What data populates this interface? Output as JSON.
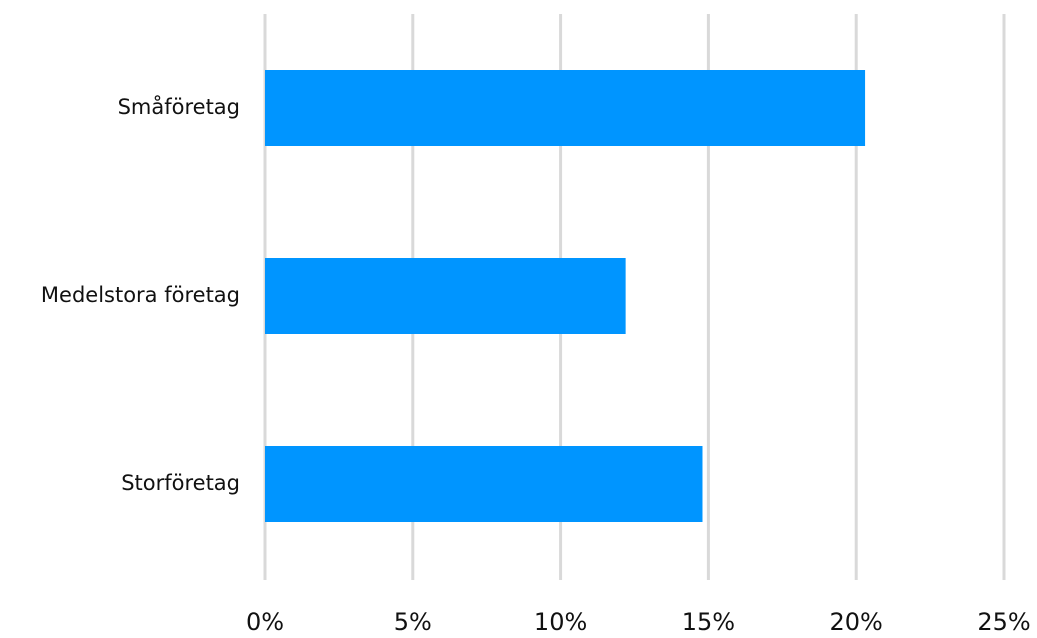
{
  "chart_data": {
    "type": "bar",
    "orientation": "horizontal",
    "categories": [
      "Småföretag",
      "Medelstora företag",
      "Storföretag"
    ],
    "values": [
      20.3,
      12.2,
      14.8
    ],
    "value_unit": "%",
    "xlim": [
      0,
      25
    ],
    "x_ticks": [
      0,
      5,
      10,
      15,
      20,
      25
    ],
    "x_tick_labels": [
      "0%",
      "5%",
      "10%",
      "15%",
      "20%",
      "25%"
    ],
    "grid": true,
    "legend": "none",
    "bar_color": "#0095FF",
    "grid_color": "#D9D9D9",
    "title": "",
    "xlabel": "",
    "ylabel": ""
  }
}
